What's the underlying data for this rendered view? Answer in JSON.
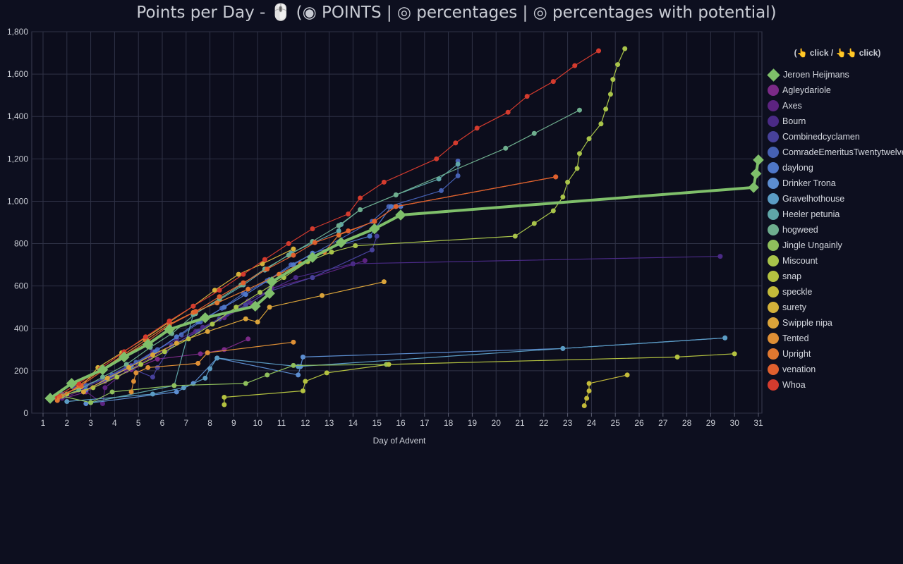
{
  "title": "Points per Day - 🖱️ (◉ POINTS | ◎ percentages | ◎ percentages with potential)",
  "legend_hint": "(👆 click / 👆👆 click)",
  "chart_data": {
    "type": "line",
    "xlabel": "Day of Advent",
    "ylabel": "",
    "xlim": [
      1,
      31
    ],
    "ylim": [
      0,
      1800
    ],
    "x_ticks": [
      1,
      2,
      3,
      4,
      5,
      6,
      7,
      8,
      9,
      10,
      11,
      12,
      13,
      14,
      15,
      16,
      17,
      18,
      19,
      20,
      21,
      22,
      23,
      24,
      25,
      26,
      27,
      28,
      29,
      30,
      31
    ],
    "y_ticks": [
      0,
      200,
      400,
      600,
      800,
      1000,
      1200,
      1400,
      1600,
      1800
    ],
    "grid": true,
    "legend_position": "right",
    "series": [
      {
        "name": "Jeroen Heijmans",
        "color": "#7fbf6a",
        "highlight": true,
        "marker": "diamond",
        "points": [
          [
            1.3,
            70
          ],
          [
            2.2,
            140
          ],
          [
            3.5,
            205
          ],
          [
            4.4,
            265
          ],
          [
            5.4,
            325
          ],
          [
            6.3,
            395
          ],
          [
            7.8,
            450
          ],
          [
            9.9,
            505
          ],
          [
            10.5,
            565
          ],
          [
            10.6,
            620
          ],
          [
            12.3,
            735
          ],
          [
            13.5,
            805
          ],
          [
            14.9,
            870
          ],
          [
            16,
            935
          ],
          [
            30.8,
            1065
          ],
          [
            30.9,
            1130
          ],
          [
            31,
            1195
          ]
        ]
      },
      {
        "name": "Agleydariole",
        "color": "#7b2a87",
        "points": [
          [
            1.6,
            60
          ],
          [
            2.8,
            100
          ],
          [
            3.6,
            150
          ],
          [
            4.7,
            205
          ],
          [
            5.8,
            255
          ],
          [
            7.6,
            280
          ],
          [
            8.6,
            300
          ],
          [
            9.6,
            350
          ]
        ]
      },
      {
        "name": "Axes",
        "color": "#5c2380",
        "points": [
          [
            1.8,
            70
          ],
          [
            2.7,
            110
          ],
          [
            3.5,
            45
          ],
          [
            3.6,
            120
          ],
          [
            4.5,
            200
          ],
          [
            5.5,
            260
          ],
          [
            6.6,
            330
          ],
          [
            7.4,
            385
          ],
          [
            8.6,
            450
          ],
          [
            9.7,
            520
          ],
          [
            10.6,
            590
          ],
          [
            12.3,
            640
          ],
          [
            14.5,
            720
          ]
        ]
      },
      {
        "name": "Bourn",
        "color": "#4a2a86",
        "points": [
          [
            1.9,
            80
          ],
          [
            2.7,
            120
          ],
          [
            3.8,
            170
          ],
          [
            4.7,
            225
          ],
          [
            5.6,
            290
          ],
          [
            6.6,
            345
          ],
          [
            7.7,
            405
          ],
          [
            8.7,
            465
          ],
          [
            9.6,
            530
          ],
          [
            10.5,
            580
          ],
          [
            11.6,
            640
          ],
          [
            14,
            705
          ],
          [
            29.4,
            740
          ]
        ]
      },
      {
        "name": "Combinedcyclamen",
        "color": "#47419a",
        "points": [
          [
            2.3,
            120
          ],
          [
            3.5,
            160
          ],
          [
            4.5,
            220
          ],
          [
            5.6,
            170
          ],
          [
            5.8,
            215
          ],
          [
            6.4,
            320
          ],
          [
            7.5,
            385
          ],
          [
            8.4,
            445
          ],
          [
            9.5,
            510
          ],
          [
            10.5,
            575
          ],
          [
            12.3,
            640
          ],
          [
            14.8,
            770
          ],
          [
            15,
            835
          ]
        ]
      },
      {
        "name": "ComradeEmeritusTwentytwelve",
        "color": "#4661b3",
        "points": [
          [
            1.8,
            90
          ],
          [
            2.8,
            130
          ],
          [
            3.9,
            180
          ],
          [
            4.9,
            240
          ],
          [
            5.8,
            300
          ],
          [
            6.8,
            370
          ],
          [
            7.6,
            430
          ],
          [
            8.5,
            495
          ],
          [
            9.4,
            565
          ],
          [
            10.4,
            625
          ],
          [
            11.4,
            700
          ],
          [
            12.3,
            750
          ],
          [
            14.8,
            905
          ],
          [
            15.5,
            975
          ],
          [
            17.7,
            1050
          ],
          [
            18.4,
            1120
          ],
          [
            18.4,
            1190
          ]
        ]
      },
      {
        "name": "daylong",
        "color": "#4f77c8",
        "points": [
          [
            2.8,
            110
          ],
          [
            3.7,
            160
          ],
          [
            4.7,
            220
          ],
          [
            5.7,
            290
          ],
          [
            6.6,
            360
          ],
          [
            7.5,
            430
          ],
          [
            8.6,
            500
          ],
          [
            9.5,
            560
          ],
          [
            10.5,
            630
          ],
          [
            11.5,
            700
          ],
          [
            12.3,
            755
          ],
          [
            14.7,
            835
          ],
          [
            15.6,
            975
          ],
          [
            16,
            975
          ]
        ]
      },
      {
        "name": "Drinker Trona",
        "color": "#5c8dd0",
        "points": [
          [
            2.8,
            45
          ],
          [
            6.6,
            100
          ],
          [
            7.3,
            140
          ],
          [
            8.3,
            260
          ],
          [
            11.7,
            180
          ],
          [
            11.8,
            220
          ],
          [
            11.9,
            265
          ],
          [
            22.8,
            305
          ],
          [
            29.6,
            355
          ]
        ]
      },
      {
        "name": "Gravelhothouse",
        "color": "#5b9cc4",
        "points": [
          [
            2,
            55
          ],
          [
            5.6,
            90
          ],
          [
            6.9,
            120
          ],
          [
            7.8,
            165
          ],
          [
            8,
            210
          ],
          [
            8.3,
            260
          ],
          [
            11.7,
            220
          ],
          [
            22.8,
            305
          ],
          [
            29.6,
            355
          ]
        ]
      },
      {
        "name": "Heeler petunia",
        "color": "#5fa6a8",
        "points": [
          [
            3,
            50
          ],
          [
            6.5,
            130
          ],
          [
            7.3,
            465
          ],
          [
            8.4,
            535
          ],
          [
            9.4,
            605
          ],
          [
            10.3,
            675
          ],
          [
            11.4,
            755
          ],
          [
            13.4,
            860
          ],
          [
            13.5,
            890
          ],
          [
            14.3,
            960
          ],
          [
            15.8,
            1030
          ],
          [
            17.6,
            1105
          ],
          [
            18.4,
            1175
          ]
        ]
      },
      {
        "name": "hogweed",
        "color": "#6eae8e",
        "points": [
          [
            1.6,
            70
          ],
          [
            2.5,
            110
          ],
          [
            3.5,
            170
          ],
          [
            4.5,
            230
          ],
          [
            5.5,
            310
          ],
          [
            6.4,
            375
          ],
          [
            7.4,
            470
          ],
          [
            8.4,
            540
          ],
          [
            9.3,
            605
          ],
          [
            10.3,
            680
          ],
          [
            11.3,
            745
          ],
          [
            12.3,
            810
          ],
          [
            13.4,
            885
          ],
          [
            14.3,
            960
          ],
          [
            15.8,
            1030
          ],
          [
            20.4,
            1250
          ],
          [
            21.6,
            1320
          ],
          [
            23.5,
            1430
          ]
        ]
      },
      {
        "name": "Jingle Ungainly",
        "color": "#8fbf5c",
        "points": [
          [
            1.8,
            80
          ],
          [
            3,
            50
          ],
          [
            3.9,
            100
          ],
          [
            6.5,
            130
          ],
          [
            9.5,
            140
          ],
          [
            10.4,
            180
          ],
          [
            11.5,
            225
          ],
          [
            15.4,
            230
          ]
        ]
      },
      {
        "name": "Miscount",
        "color": "#a9c44a",
        "points": [
          [
            2,
            90
          ],
          [
            3.1,
            120
          ],
          [
            4.1,
            170
          ],
          [
            5.1,
            230
          ],
          [
            6.1,
            290
          ],
          [
            7.1,
            350
          ],
          [
            8.1,
            420
          ],
          [
            9.1,
            500
          ],
          [
            10.1,
            570
          ],
          [
            11.1,
            640
          ],
          [
            12.1,
            715
          ],
          [
            13.1,
            760
          ],
          [
            14.1,
            790
          ],
          [
            20.8,
            835
          ],
          [
            21.6,
            895
          ],
          [
            22.4,
            955
          ],
          [
            22.8,
            1020
          ],
          [
            23,
            1090
          ],
          [
            23.4,
            1155
          ],
          [
            23.5,
            1225
          ],
          [
            23.9,
            1295
          ],
          [
            24.4,
            1365
          ],
          [
            24.6,
            1435
          ],
          [
            24.8,
            1505
          ],
          [
            24.9,
            1575
          ],
          [
            25.1,
            1645
          ],
          [
            25.4,
            1720
          ]
        ]
      },
      {
        "name": "snap",
        "color": "#b4c240",
        "points": [
          [
            8.6,
            40
          ],
          [
            8.6,
            75
          ],
          [
            11.9,
            105
          ],
          [
            12,
            150
          ],
          [
            12.9,
            190
          ],
          [
            15.5,
            230
          ],
          [
            27.6,
            265
          ],
          [
            30,
            280
          ]
        ]
      },
      {
        "name": "speckle",
        "color": "#c4bb3a",
        "points": [
          [
            23.7,
            35
          ],
          [
            23.8,
            70
          ],
          [
            23.9,
            105
          ],
          [
            23.9,
            140
          ],
          [
            25.5,
            180
          ]
        ]
      },
      {
        "name": "surety",
        "color": "#d3b13a",
        "points": [
          [
            1.6,
            75
          ],
          [
            2.6,
            125
          ],
          [
            3.3,
            215
          ],
          [
            4.3,
            285
          ],
          [
            5.3,
            355
          ],
          [
            6.3,
            430
          ],
          [
            7.3,
            505
          ],
          [
            8.2,
            580
          ],
          [
            9.2,
            655
          ],
          [
            10.2,
            705
          ],
          [
            11.5,
            775
          ]
        ]
      },
      {
        "name": "Swipple nipa",
        "color": "#dba43a",
        "points": [
          [
            2.7,
            100
          ],
          [
            3.7,
            165
          ],
          [
            4.6,
            215
          ],
          [
            5.6,
            275
          ],
          [
            6.6,
            330
          ],
          [
            7.9,
            385
          ],
          [
            9.5,
            445
          ],
          [
            10,
            430
          ],
          [
            10.5,
            500
          ],
          [
            12.7,
            555
          ],
          [
            15.3,
            620
          ]
        ]
      },
      {
        "name": "Tented",
        "color": "#df8f35",
        "points": [
          [
            4.7,
            100
          ],
          [
            4.8,
            150
          ],
          [
            4.9,
            190
          ],
          [
            5.4,
            215
          ],
          [
            7.5,
            235
          ],
          [
            7.9,
            285
          ],
          [
            11.5,
            335
          ]
        ]
      },
      {
        "name": "Upright",
        "color": "#e07830",
        "points": [
          [
            1.6,
            60
          ],
          [
            2.5,
            130
          ],
          [
            3.4,
            200
          ],
          [
            4.3,
            270
          ],
          [
            5.3,
            345
          ],
          [
            6.3,
            420
          ],
          [
            7.3,
            475
          ],
          [
            8.3,
            520
          ],
          [
            9.6,
            585
          ],
          [
            10.9,
            655
          ],
          [
            11.8,
            705
          ],
          [
            12.8,
            760
          ],
          [
            13.4,
            840
          ],
          [
            14.9,
            905
          ],
          [
            15.8,
            975
          ],
          [
            22.5,
            1115
          ]
        ]
      },
      {
        "name": "venation",
        "color": "#e0602e",
        "points": [
          [
            1.7,
            80
          ],
          [
            2.6,
            130
          ],
          [
            3.5,
            200
          ],
          [
            4.4,
            270
          ],
          [
            5.4,
            340
          ],
          [
            6.3,
            415
          ],
          [
            7.4,
            480
          ],
          [
            8.4,
            550
          ],
          [
            9.4,
            615
          ],
          [
            10.4,
            680
          ],
          [
            11.5,
            745
          ],
          [
            12.4,
            805
          ],
          [
            13.8,
            860
          ],
          [
            14.9,
            905
          ],
          [
            15.8,
            975
          ],
          [
            22.5,
            1115
          ]
        ]
      },
      {
        "name": "Whoa",
        "color": "#d43b2e",
        "points": [
          [
            1.5,
            75
          ],
          [
            2.5,
            140
          ],
          [
            3.4,
            210
          ],
          [
            4.4,
            290
          ],
          [
            5.3,
            360
          ],
          [
            6.3,
            435
          ],
          [
            7.3,
            505
          ],
          [
            8.4,
            580
          ],
          [
            9.4,
            655
          ],
          [
            10.3,
            725
          ],
          [
            11.3,
            800
          ],
          [
            12.3,
            870
          ],
          [
            13.8,
            940
          ],
          [
            14.3,
            1015
          ],
          [
            15.3,
            1090
          ],
          [
            17.5,
            1200
          ],
          [
            18.3,
            1275
          ],
          [
            19.2,
            1345
          ],
          [
            20.5,
            1420
          ],
          [
            21.3,
            1495
          ],
          [
            22.4,
            1565
          ],
          [
            23.3,
            1640
          ],
          [
            24.3,
            1710
          ]
        ]
      }
    ]
  }
}
